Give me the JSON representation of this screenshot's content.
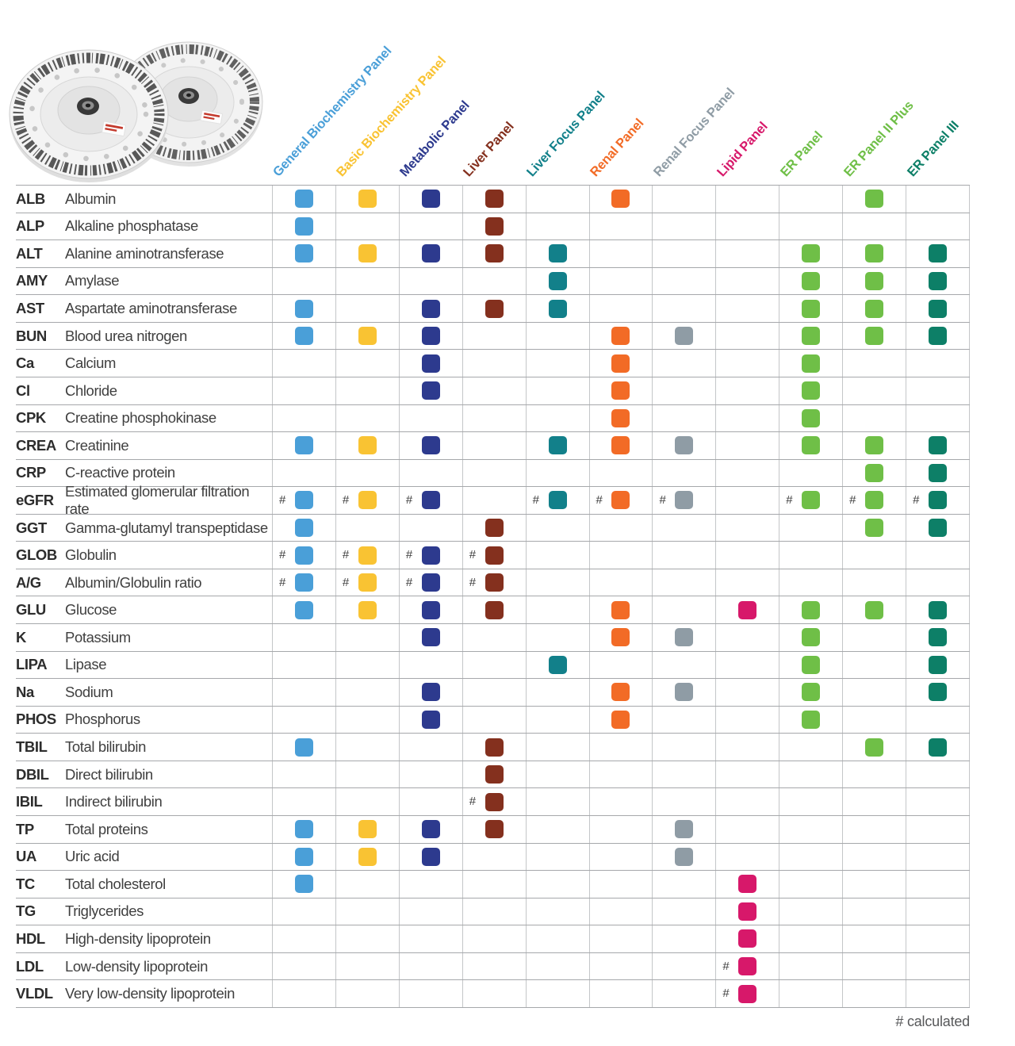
{
  "page": {
    "background": "#ffffff",
    "footnote": "# calculated",
    "calculated_symbol": "#"
  },
  "product_image": {
    "name": "reagent-rotor-discs",
    "description": "Two clear round reagent rotor discs with barcode-printed rims and dark center hubs"
  },
  "chart_data": {
    "type": "table",
    "title": "",
    "mark_legend": {
      "0": "not included",
      "1": "included",
      "2": "included, calculated (#)"
    },
    "columns": [
      {
        "label": "General Biochemistry Panel",
        "color": "#4A9FD8"
      },
      {
        "label": "Basic Biochemistry Panel",
        "color": "#F9C333"
      },
      {
        "label": "Metabolic Panel",
        "color": "#2D3A8E"
      },
      {
        "label": "Liver Panel",
        "color": "#84301E"
      },
      {
        "label": "Liver Focus Panel",
        "color": "#12808A"
      },
      {
        "label": "Renal Panel",
        "color": "#F26B26"
      },
      {
        "label": "Renal Focus Panel",
        "color": "#8F9CA5"
      },
      {
        "label": "Lipid Panel",
        "color": "#D7186A"
      },
      {
        "label": "ER Panel",
        "color": "#6FBF47"
      },
      {
        "label": "ER Panel II Plus",
        "color": "#6FBF47"
      },
      {
        "label": "ER Panel III",
        "color": "#0D7F67"
      }
    ],
    "rows": [
      {
        "abbr": "ALB",
        "name": "Albumin",
        "marks": [
          1,
          1,
          1,
          1,
          0,
          1,
          0,
          0,
          0,
          1,
          0
        ]
      },
      {
        "abbr": "ALP",
        "name": "Alkaline phosphatase",
        "marks": [
          1,
          0,
          0,
          1,
          0,
          0,
          0,
          0,
          0,
          0,
          0
        ]
      },
      {
        "abbr": "ALT",
        "name": "Alanine aminotransferase",
        "marks": [
          1,
          1,
          1,
          1,
          1,
          0,
          0,
          0,
          1,
          1,
          1
        ]
      },
      {
        "abbr": "AMY",
        "name": "Amylase",
        "marks": [
          0,
          0,
          0,
          0,
          1,
          0,
          0,
          0,
          1,
          1,
          1
        ]
      },
      {
        "abbr": "AST",
        "name": "Aspartate aminotransferase",
        "marks": [
          1,
          0,
          1,
          1,
          1,
          0,
          0,
          0,
          1,
          1,
          1
        ]
      },
      {
        "abbr": "BUN",
        "name": "Blood urea nitrogen",
        "marks": [
          1,
          1,
          1,
          0,
          0,
          1,
          1,
          0,
          1,
          1,
          1
        ]
      },
      {
        "abbr": "Ca",
        "name": "Calcium",
        "marks": [
          0,
          0,
          1,
          0,
          0,
          1,
          0,
          0,
          1,
          0,
          0
        ]
      },
      {
        "abbr": "Cl",
        "name": "Chloride",
        "marks": [
          0,
          0,
          1,
          0,
          0,
          1,
          0,
          0,
          1,
          0,
          0
        ]
      },
      {
        "abbr": "CPK",
        "name": "Creatine phosphokinase",
        "marks": [
          0,
          0,
          0,
          0,
          0,
          1,
          0,
          0,
          1,
          0,
          0
        ]
      },
      {
        "abbr": "CREA",
        "name": "Creatinine",
        "marks": [
          1,
          1,
          1,
          0,
          1,
          1,
          1,
          0,
          1,
          1,
          1
        ]
      },
      {
        "abbr": "CRP",
        "name": "C-reactive protein",
        "marks": [
          0,
          0,
          0,
          0,
          0,
          0,
          0,
          0,
          0,
          1,
          1
        ]
      },
      {
        "abbr": "eGFR",
        "name": "Estimated glomerular filtration rate",
        "marks": [
          2,
          2,
          2,
          0,
          2,
          2,
          2,
          0,
          2,
          2,
          2
        ]
      },
      {
        "abbr": "GGT",
        "name": "Gamma-glutamyl transpeptidase",
        "marks": [
          1,
          0,
          0,
          1,
          0,
          0,
          0,
          0,
          0,
          1,
          1
        ]
      },
      {
        "abbr": "GLOB",
        "name": "Globulin",
        "marks": [
          2,
          2,
          2,
          2,
          0,
          0,
          0,
          0,
          0,
          0,
          0
        ]
      },
      {
        "abbr": "A/G",
        "name": "Albumin/Globulin ratio",
        "marks": [
          2,
          2,
          2,
          2,
          0,
          0,
          0,
          0,
          0,
          0,
          0
        ]
      },
      {
        "abbr": "GLU",
        "name": "Glucose",
        "marks": [
          1,
          1,
          1,
          1,
          0,
          1,
          0,
          1,
          1,
          1,
          1
        ]
      },
      {
        "abbr": "K",
        "name": "Potassium",
        "marks": [
          0,
          0,
          1,
          0,
          0,
          1,
          1,
          0,
          1,
          0,
          1
        ]
      },
      {
        "abbr": "LIPA",
        "name": "Lipase",
        "marks": [
          0,
          0,
          0,
          0,
          1,
          0,
          0,
          0,
          1,
          0,
          1
        ]
      },
      {
        "abbr": "Na",
        "name": "Sodium",
        "marks": [
          0,
          0,
          1,
          0,
          0,
          1,
          1,
          0,
          1,
          0,
          1
        ]
      },
      {
        "abbr": "PHOS",
        "name": "Phosphorus",
        "marks": [
          0,
          0,
          1,
          0,
          0,
          1,
          0,
          0,
          1,
          0,
          0
        ]
      },
      {
        "abbr": "TBIL",
        "name": "Total bilirubin",
        "marks": [
          1,
          0,
          0,
          1,
          0,
          0,
          0,
          0,
          0,
          1,
          1
        ]
      },
      {
        "abbr": "DBIL",
        "name": "Direct bilirubin",
        "marks": [
          0,
          0,
          0,
          1,
          0,
          0,
          0,
          0,
          0,
          0,
          0
        ]
      },
      {
        "abbr": "IBIL",
        "name": "Indirect bilirubin",
        "marks": [
          0,
          0,
          0,
          2,
          0,
          0,
          0,
          0,
          0,
          0,
          0
        ]
      },
      {
        "abbr": "TP",
        "name": "Total proteins",
        "marks": [
          1,
          1,
          1,
          1,
          0,
          0,
          1,
          0,
          0,
          0,
          0
        ]
      },
      {
        "abbr": "UA",
        "name": "Uric acid",
        "marks": [
          1,
          1,
          1,
          0,
          0,
          0,
          1,
          0,
          0,
          0,
          0
        ]
      },
      {
        "abbr": "TC",
        "name": "Total cholesterol",
        "marks": [
          1,
          0,
          0,
          0,
          0,
          0,
          0,
          1,
          0,
          0,
          0
        ]
      },
      {
        "abbr": "TG",
        "name": "Triglycerides",
        "marks": [
          0,
          0,
          0,
          0,
          0,
          0,
          0,
          1,
          0,
          0,
          0
        ]
      },
      {
        "abbr": "HDL",
        "name": "High-density lipoprotein",
        "marks": [
          0,
          0,
          0,
          0,
          0,
          0,
          0,
          1,
          0,
          0,
          0
        ]
      },
      {
        "abbr": "LDL",
        "name": "Low-density lipoprotein",
        "marks": [
          0,
          0,
          0,
          0,
          0,
          0,
          0,
          2,
          0,
          0,
          0
        ]
      },
      {
        "abbr": "VLDL",
        "name": "Very low-density lipoprotein",
        "marks": [
          0,
          0,
          0,
          0,
          0,
          0,
          0,
          2,
          0,
          0,
          0
        ]
      }
    ],
    "footnote": "# calculated"
  }
}
